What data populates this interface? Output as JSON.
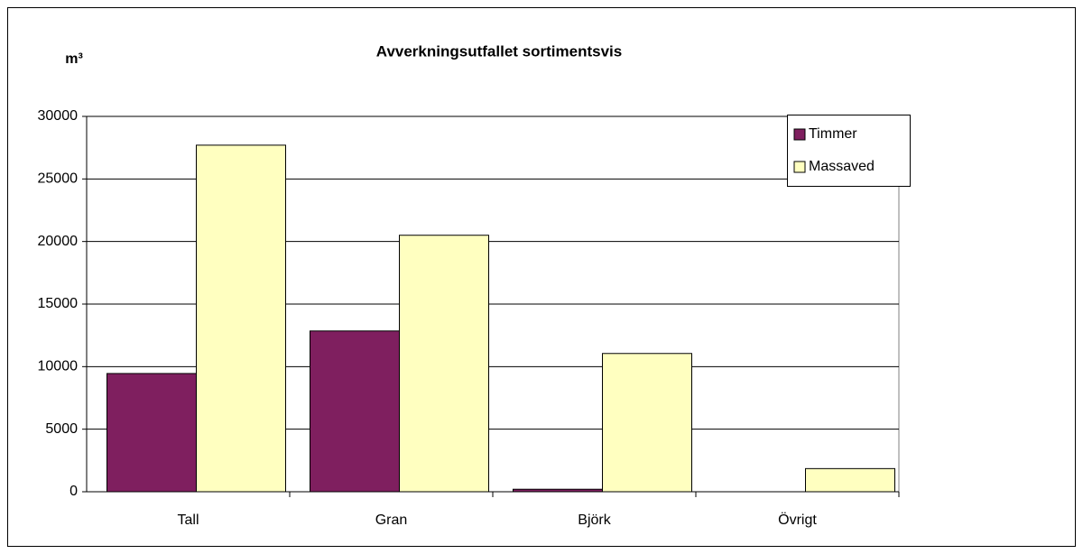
{
  "chart_data": {
    "type": "bar",
    "title": "Avverkningsutfallet sortimentsvis",
    "y_label": "m³",
    "categories": [
      "Tall",
      "Gran",
      "Björk",
      "Övrigt"
    ],
    "series": [
      {
        "name": "Timmer",
        "color": "#7f1f5f",
        "values": [
          9450,
          12850,
          200,
          0
        ]
      },
      {
        "name": "Massaved",
        "color": "#ffffc0",
        "values": [
          27700,
          20500,
          11050,
          1850
        ]
      }
    ],
    "ylim": [
      0,
      30000
    ],
    "yticks": [
      0,
      5000,
      10000,
      15000,
      20000,
      25000,
      30000
    ],
    "grid": true,
    "legend": "top-right"
  }
}
